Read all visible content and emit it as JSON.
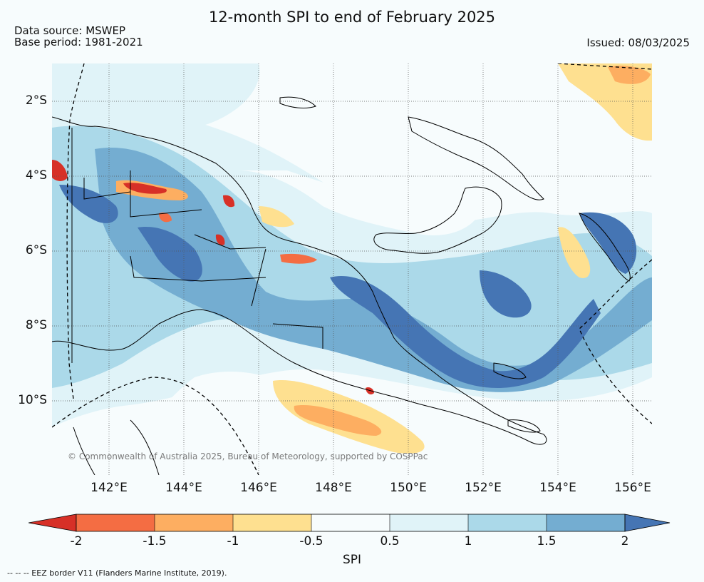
{
  "title": "12-month SPI to end of February 2025",
  "data_source": "Data source: MSWEP",
  "base_period": "Base period: 1981-2021",
  "issued": "Issued: 08/03/2025",
  "credit": "© Commonwealth of Australia 2025, Bureau of Meteorology, supported by COSPPac",
  "eez_note": "--  --  -- EEZ border V11 (Flanders Marine Institute, 2019).",
  "map": {
    "lat_labels": [
      "2°S",
      "4°S",
      "6°S",
      "8°S",
      "10°S"
    ],
    "lon_labels": [
      "142°E",
      "144°E",
      "146°E",
      "148°E",
      "150°E",
      "152°E",
      "154°E",
      "156°E"
    ]
  },
  "colorbar": {
    "label": "SPI",
    "ticks": [
      "-2",
      "-1.5",
      "-1",
      "-0.5",
      "0.5",
      "1",
      "1.5",
      "2"
    ],
    "bin_colors": [
      "#d73027",
      "#f46d43",
      "#fdae61",
      "#fee090",
      "#f7fcfd",
      "#e0f3f8",
      "#abd9e9",
      "#74add1",
      "#4575b4"
    ]
  },
  "colors": {
    "background": "#f7fcfd",
    "coastline": "#000000",
    "grid": "#555555"
  }
}
